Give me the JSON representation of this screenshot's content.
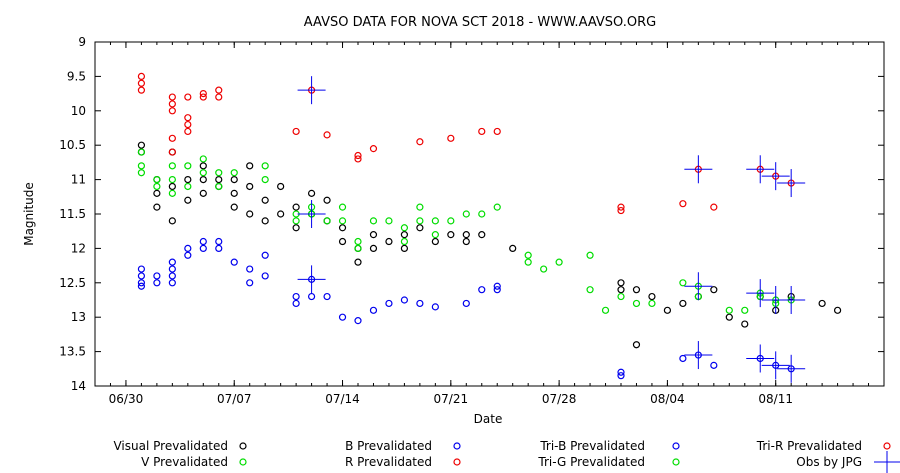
{
  "chart_data": {
    "type": "scatter",
    "title": "AAVSO DATA FOR NOVA SCT 2018 - WWW.AAVSO.ORG",
    "xlabel": "Date",
    "ylabel": "Magnitude",
    "x_axis": {
      "type": "date",
      "min": "2018-06-28",
      "max": "2018-08-18"
    },
    "y_axis": {
      "min": 9,
      "max": 14,
      "inverted": true,
      "ticks": [
        9,
        9.5,
        10,
        10.5,
        11,
        11.5,
        12,
        12.5,
        13,
        13.5,
        14
      ],
      "tick_labels": [
        "9",
        "9.5",
        "10",
        "10.5",
        "11",
        "11.5",
        "12",
        "12.5",
        "13",
        "13.5",
        "14"
      ]
    },
    "x_ticks": [
      {
        "label": "06/30",
        "date": "2018-06-30"
      },
      {
        "label": "07/07",
        "date": "2018-07-07"
      },
      {
        "label": "07/14",
        "date": "2018-07-14"
      },
      {
        "label": "07/21",
        "date": "2018-07-21"
      },
      {
        "label": "07/28",
        "date": "2018-07-28"
      },
      {
        "label": "08/04",
        "date": "2018-08-04"
      },
      {
        "label": "08/11",
        "date": "2018-08-11"
      }
    ],
    "grid": false,
    "legend_position": "bottom",
    "series": [
      {
        "name": "Visual Prevalidated",
        "color": "#000000",
        "marker": "circle",
        "points": [
          [
            "2018-07-01",
            10.5
          ],
          [
            "2018-07-01",
            10.6
          ],
          [
            "2018-07-02",
            11.0
          ],
          [
            "2018-07-02",
            11.2
          ],
          [
            "2018-07-02",
            11.4
          ],
          [
            "2018-07-03",
            10.6
          ],
          [
            "2018-07-03",
            11.1
          ],
          [
            "2018-07-03",
            11.6
          ],
          [
            "2018-07-04",
            11.0
          ],
          [
            "2018-07-04",
            11.3
          ],
          [
            "2018-07-05",
            11.0
          ],
          [
            "2018-07-05",
            11.2
          ],
          [
            "2018-07-05",
            10.8
          ],
          [
            "2018-07-06",
            11.1
          ],
          [
            "2018-07-06",
            11.0
          ],
          [
            "2018-07-07",
            11.2
          ],
          [
            "2018-07-07",
            11.4
          ],
          [
            "2018-07-07",
            11.0
          ],
          [
            "2018-07-08",
            11.1
          ],
          [
            "2018-07-08",
            11.5
          ],
          [
            "2018-07-08",
            10.8
          ],
          [
            "2018-07-09",
            11.3
          ],
          [
            "2018-07-09",
            11.6
          ],
          [
            "2018-07-10",
            11.1
          ],
          [
            "2018-07-10",
            11.5
          ],
          [
            "2018-07-11",
            11.4
          ],
          [
            "2018-07-11",
            11.7
          ],
          [
            "2018-07-12",
            11.5
          ],
          [
            "2018-07-12",
            11.2
          ],
          [
            "2018-07-13",
            11.3
          ],
          [
            "2018-07-13",
            11.6
          ],
          [
            "2018-07-14",
            11.7
          ],
          [
            "2018-07-14",
            11.9
          ],
          [
            "2018-07-15",
            12.0
          ],
          [
            "2018-07-15",
            12.2
          ],
          [
            "2018-07-16",
            11.8
          ],
          [
            "2018-07-16",
            12.0
          ],
          [
            "2018-07-17",
            11.9
          ],
          [
            "2018-07-18",
            11.8
          ],
          [
            "2018-07-18",
            12.0
          ],
          [
            "2018-07-19",
            11.7
          ],
          [
            "2018-07-20",
            11.9
          ],
          [
            "2018-07-21",
            11.8
          ],
          [
            "2018-07-22",
            11.9
          ],
          [
            "2018-07-22",
            11.8
          ],
          [
            "2018-07-23",
            11.8
          ],
          [
            "2018-07-25",
            12.0
          ],
          [
            "2018-08-01",
            12.5
          ],
          [
            "2018-08-01",
            12.6
          ],
          [
            "2018-08-02",
            13.4
          ],
          [
            "2018-08-02",
            12.6
          ],
          [
            "2018-08-03",
            12.7
          ],
          [
            "2018-08-04",
            12.9
          ],
          [
            "2018-08-05",
            12.8
          ],
          [
            "2018-08-06",
            12.7
          ],
          [
            "2018-08-07",
            12.6
          ],
          [
            "2018-08-08",
            13.0
          ],
          [
            "2018-08-09",
            13.1
          ],
          [
            "2018-08-10",
            12.7
          ],
          [
            "2018-08-11",
            12.9
          ],
          [
            "2018-08-12",
            12.7
          ],
          [
            "2018-08-14",
            12.8
          ],
          [
            "2018-08-15",
            12.9
          ]
        ]
      },
      {
        "name": "V Prevalidated",
        "color": "#00dd00",
        "marker": "circle",
        "points": [
          [
            "2018-07-01",
            10.6
          ],
          [
            "2018-07-01",
            10.8
          ],
          [
            "2018-07-01",
            10.9
          ],
          [
            "2018-07-02",
            11.0
          ],
          [
            "2018-07-02",
            11.1
          ],
          [
            "2018-07-03",
            10.8
          ],
          [
            "2018-07-03",
            11.0
          ],
          [
            "2018-07-03",
            11.2
          ],
          [
            "2018-07-04",
            10.8
          ],
          [
            "2018-07-04",
            11.1
          ],
          [
            "2018-07-05",
            10.7
          ],
          [
            "2018-07-05",
            10.9
          ],
          [
            "2018-07-06",
            10.9
          ],
          [
            "2018-07-06",
            11.1
          ],
          [
            "2018-07-07",
            10.9
          ],
          [
            "2018-07-09",
            10.8
          ],
          [
            "2018-07-09",
            11.0
          ],
          [
            "2018-07-11",
            11.5
          ],
          [
            "2018-07-11",
            11.6
          ],
          [
            "2018-07-12",
            11.4
          ],
          [
            "2018-07-12",
            11.5
          ],
          [
            "2018-07-13",
            11.6
          ],
          [
            "2018-07-14",
            11.4
          ],
          [
            "2018-07-14",
            11.6
          ],
          [
            "2018-07-15",
            11.9
          ],
          [
            "2018-07-15",
            12.0
          ],
          [
            "2018-07-16",
            11.6
          ],
          [
            "2018-07-17",
            11.6
          ],
          [
            "2018-07-18",
            11.7
          ],
          [
            "2018-07-18",
            11.9
          ],
          [
            "2018-07-19",
            11.4
          ],
          [
            "2018-07-19",
            11.6
          ],
          [
            "2018-07-20",
            11.6
          ],
          [
            "2018-07-20",
            11.8
          ],
          [
            "2018-07-21",
            11.6
          ],
          [
            "2018-07-22",
            11.5
          ],
          [
            "2018-07-23",
            11.5
          ],
          [
            "2018-07-24",
            11.4
          ],
          [
            "2018-07-26",
            12.2
          ],
          [
            "2018-07-26",
            12.1
          ],
          [
            "2018-07-27",
            12.3
          ],
          [
            "2018-07-28",
            12.2
          ],
          [
            "2018-07-30",
            12.1
          ],
          [
            "2018-07-30",
            12.6
          ],
          [
            "2018-07-31",
            12.9
          ],
          [
            "2018-08-01",
            12.7
          ],
          [
            "2018-08-02",
            12.8
          ],
          [
            "2018-08-03",
            12.8
          ],
          [
            "2018-08-05",
            12.5
          ],
          [
            "2018-08-06",
            12.7
          ],
          [
            "2018-08-08",
            12.9
          ],
          [
            "2018-08-09",
            12.9
          ],
          [
            "2018-08-10",
            12.7
          ],
          [
            "2018-08-11",
            12.8
          ]
        ]
      },
      {
        "name": "B Prevalidated",
        "color": "#0000ee",
        "marker": "circle",
        "points": [
          [
            "2018-07-01",
            12.3
          ],
          [
            "2018-07-01",
            12.4
          ],
          [
            "2018-07-01",
            12.5
          ],
          [
            "2018-07-01",
            12.55
          ],
          [
            "2018-07-02",
            12.4
          ],
          [
            "2018-07-02",
            12.5
          ],
          [
            "2018-07-03",
            12.2
          ],
          [
            "2018-07-03",
            12.3
          ],
          [
            "2018-07-03",
            12.4
          ],
          [
            "2018-07-03",
            12.5
          ],
          [
            "2018-07-04",
            12.0
          ],
          [
            "2018-07-04",
            12.1
          ],
          [
            "2018-07-05",
            12.0
          ],
          [
            "2018-07-05",
            11.9
          ],
          [
            "2018-07-06",
            11.9
          ],
          [
            "2018-07-06",
            12.0
          ],
          [
            "2018-07-07",
            12.2
          ],
          [
            "2018-07-08",
            12.5
          ],
          [
            "2018-07-08",
            12.3
          ],
          [
            "2018-07-09",
            12.1
          ],
          [
            "2018-07-09",
            12.4
          ],
          [
            "2018-07-11",
            12.7
          ],
          [
            "2018-07-11",
            12.8
          ],
          [
            "2018-07-12",
            12.7
          ],
          [
            "2018-07-13",
            12.7
          ],
          [
            "2018-07-14",
            13.0
          ],
          [
            "2018-07-15",
            13.05
          ],
          [
            "2018-07-16",
            12.9
          ],
          [
            "2018-07-17",
            12.8
          ],
          [
            "2018-07-18",
            12.75
          ],
          [
            "2018-07-19",
            12.8
          ],
          [
            "2018-07-20",
            12.85
          ],
          [
            "2018-07-22",
            12.8
          ],
          [
            "2018-07-23",
            12.6
          ],
          [
            "2018-07-24",
            12.55
          ],
          [
            "2018-07-24",
            12.6
          ],
          [
            "2018-08-01",
            13.8
          ],
          [
            "2018-08-01",
            13.85
          ],
          [
            "2018-08-05",
            13.6
          ],
          [
            "2018-08-07",
            13.7
          ]
        ]
      },
      {
        "name": "R Prevalidated",
        "color": "#ee0000",
        "marker": "circle",
        "points": [
          [
            "2018-07-01",
            9.5
          ],
          [
            "2018-07-01",
            9.6
          ],
          [
            "2018-07-01",
            9.7
          ],
          [
            "2018-07-03",
            9.8
          ],
          [
            "2018-07-03",
            9.9
          ],
          [
            "2018-07-03",
            10.0
          ],
          [
            "2018-07-03",
            10.4
          ],
          [
            "2018-07-03",
            10.6
          ],
          [
            "2018-07-04",
            10.2
          ],
          [
            "2018-07-04",
            10.1
          ],
          [
            "2018-07-04",
            10.3
          ],
          [
            "2018-07-04",
            9.8
          ],
          [
            "2018-07-05",
            9.75
          ],
          [
            "2018-07-05",
            9.8
          ],
          [
            "2018-07-06",
            9.8
          ],
          [
            "2018-07-06",
            9.7
          ],
          [
            "2018-07-11",
            10.3
          ],
          [
            "2018-07-13",
            10.35
          ],
          [
            "2018-07-15",
            10.65
          ],
          [
            "2018-07-15",
            10.7
          ],
          [
            "2018-07-16",
            10.55
          ],
          [
            "2018-07-19",
            10.45
          ],
          [
            "2018-07-21",
            10.4
          ],
          [
            "2018-07-23",
            10.3
          ],
          [
            "2018-07-24",
            10.3
          ],
          [
            "2018-08-01",
            11.45
          ],
          [
            "2018-08-01",
            11.4
          ],
          [
            "2018-08-05",
            11.35
          ],
          [
            "2018-08-07",
            11.4
          ]
        ]
      },
      {
        "name": "Tri-B Prevalidated",
        "color": "#0000ee",
        "marker": "circle",
        "points": [
          [
            "2018-07-12",
            12.45
          ],
          [
            "2018-08-06",
            13.55
          ],
          [
            "2018-08-10",
            13.6
          ],
          [
            "2018-08-11",
            13.7
          ],
          [
            "2018-08-12",
            13.75
          ]
        ]
      },
      {
        "name": "Tri-G Prevalidated",
        "color": "#00dd00",
        "marker": "circle",
        "points": [
          [
            "2018-07-12",
            11.5
          ],
          [
            "2018-08-06",
            12.55
          ],
          [
            "2018-08-10",
            12.65
          ],
          [
            "2018-08-11",
            12.75
          ],
          [
            "2018-08-12",
            12.75
          ]
        ]
      },
      {
        "name": "Tri-R Prevalidated",
        "color": "#ee0000",
        "marker": "circle",
        "points": [
          [
            "2018-07-12",
            9.7
          ],
          [
            "2018-08-06",
            10.85
          ],
          [
            "2018-08-10",
            10.85
          ],
          [
            "2018-08-11",
            10.95
          ],
          [
            "2018-08-12",
            11.05
          ]
        ]
      },
      {
        "name": "Obs by JPG",
        "color": "#0000ee",
        "marker": "cross",
        "points": [
          [
            "2018-07-12",
            9.7
          ],
          [
            "2018-07-12",
            11.5
          ],
          [
            "2018-07-12",
            12.45
          ],
          [
            "2018-08-06",
            10.85
          ],
          [
            "2018-08-06",
            12.55
          ],
          [
            "2018-08-06",
            13.55
          ],
          [
            "2018-08-10",
            10.85
          ],
          [
            "2018-08-10",
            12.65
          ],
          [
            "2018-08-10",
            13.6
          ],
          [
            "2018-08-11",
            10.95
          ],
          [
            "2018-08-11",
            12.75
          ],
          [
            "2018-08-11",
            13.7
          ],
          [
            "2018-08-12",
            11.05
          ],
          [
            "2018-08-12",
            12.75
          ],
          [
            "2018-08-12",
            13.75
          ]
        ]
      }
    ]
  }
}
